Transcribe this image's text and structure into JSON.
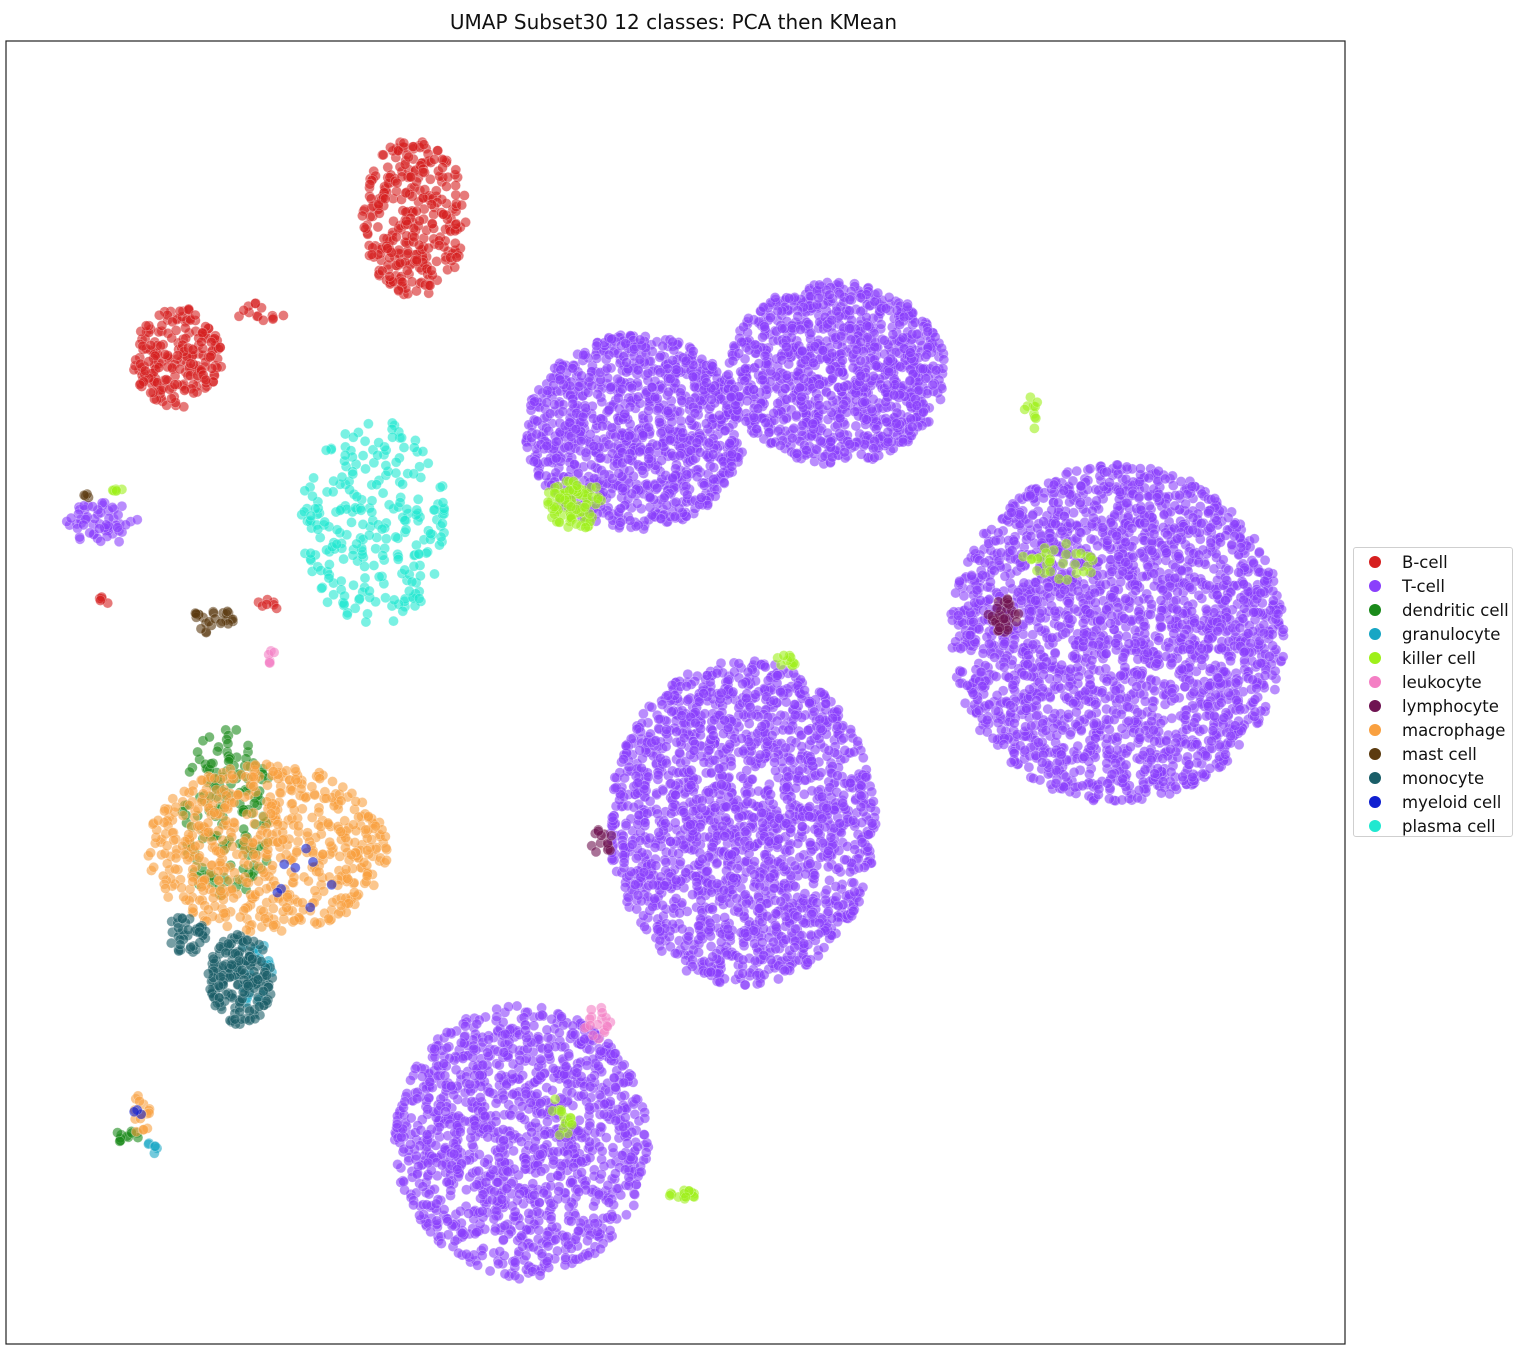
{
  "chart_data": {
    "type": "scatter",
    "title": "UMAP Subset30 12 classes: PCA then KMean",
    "xlabel": "",
    "ylabel": "",
    "xlim": [
      0,
      100
    ],
    "ylim": [
      0,
      100
    ],
    "grid": false,
    "ticks": false,
    "legend_position": "right",
    "series": [
      {
        "name": "B-cell",
        "color": "#d62020",
        "clusters": [
          {
            "x": 30.5,
            "y": 86.5,
            "rx": 3.9,
            "ry": 6.1,
            "n": 320
          },
          {
            "x": 12.8,
            "y": 75.7,
            "rx": 3.4,
            "ry": 3.9,
            "n": 210
          },
          {
            "x": 19.0,
            "y": 79.1,
            "rx": 1.8,
            "ry": 0.9,
            "n": 14
          },
          {
            "x": 19.8,
            "y": 56.8,
            "rx": 1.2,
            "ry": 0.4,
            "n": 7
          },
          {
            "x": 7.3,
            "y": 57.0,
            "rx": 0.4,
            "ry": 0.8,
            "n": 5
          }
        ]
      },
      {
        "name": "T-cell",
        "color": "#8a3ffc",
        "clusters": [
          {
            "x": 47.0,
            "y": 70.0,
            "rx": 8.2,
            "ry": 7.5,
            "n": 1100
          },
          {
            "x": 62.0,
            "y": 74.5,
            "rx": 8.2,
            "ry": 7.0,
            "n": 1100
          },
          {
            "x": 83.0,
            "y": 54.5,
            "rx": 12.5,
            "ry": 13.0,
            "n": 2400
          },
          {
            "x": 55.0,
            "y": 40.0,
            "rx": 10.0,
            "ry": 12.5,
            "n": 1900
          },
          {
            "x": 38.5,
            "y": 15.5,
            "rx": 9.5,
            "ry": 10.5,
            "n": 1300
          },
          {
            "x": 7.2,
            "y": 63.0,
            "rx": 2.8,
            "ry": 1.6,
            "n": 60
          }
        ]
      },
      {
        "name": "dendritic cell",
        "color": "#1a8a1a",
        "clusters": [
          {
            "x": 16.5,
            "y": 40.5,
            "rx": 3.5,
            "ry": 6.8,
            "n": 160
          },
          {
            "x": 9.0,
            "y": 16.0,
            "rx": 0.9,
            "ry": 0.6,
            "n": 12
          }
        ]
      },
      {
        "name": "granulocyte",
        "color": "#17a6c4",
        "clusters": [
          {
            "x": 18.5,
            "y": 28.5,
            "rx": 1.5,
            "ry": 2.5,
            "n": 30
          },
          {
            "x": 11.0,
            "y": 15.2,
            "rx": 0.5,
            "ry": 0.6,
            "n": 6
          }
        ]
      },
      {
        "name": "killer cell",
        "color": "#9ef01a",
        "clusters": [
          {
            "x": 42.5,
            "y": 64.5,
            "rx": 2.2,
            "ry": 2.0,
            "n": 90
          },
          {
            "x": 78.5,
            "y": 60.0,
            "rx": 3.0,
            "ry": 1.5,
            "n": 30
          },
          {
            "x": 50.5,
            "y": 11.5,
            "rx": 1.2,
            "ry": 0.4,
            "n": 15
          },
          {
            "x": 41.5,
            "y": 17.5,
            "rx": 1.0,
            "ry": 1.5,
            "n": 15
          },
          {
            "x": 58.5,
            "y": 52.5,
            "rx": 1.0,
            "ry": 0.6,
            "n": 10
          },
          {
            "x": 76.5,
            "y": 71.5,
            "rx": 0.6,
            "ry": 1.6,
            "n": 10
          },
          {
            "x": 8.5,
            "y": 65.5,
            "rx": 0.6,
            "ry": 0.3,
            "n": 6
          }
        ]
      },
      {
        "name": "leukocyte",
        "color": "#f47fc4",
        "clusters": [
          {
            "x": 44.0,
            "y": 24.5,
            "rx": 1.4,
            "ry": 1.4,
            "n": 18
          },
          {
            "x": 19.8,
            "y": 52.5,
            "rx": 0.4,
            "ry": 0.8,
            "n": 6
          }
        ]
      },
      {
        "name": "lymphocyte",
        "color": "#6f1452",
        "clusters": [
          {
            "x": 74.5,
            "y": 56.0,
            "rx": 1.2,
            "ry": 1.4,
            "n": 35
          },
          {
            "x": 44.5,
            "y": 38.5,
            "rx": 0.9,
            "ry": 1.0,
            "n": 14
          }
        ]
      },
      {
        "name": "macrophage",
        "color": "#f9a040",
        "clusters": [
          {
            "x": 19.5,
            "y": 38.0,
            "rx": 9.0,
            "ry": 6.5,
            "n": 600
          },
          {
            "x": 10.0,
            "y": 17.5,
            "rx": 0.8,
            "ry": 1.7,
            "n": 16
          }
        ]
      },
      {
        "name": "mast cell",
        "color": "#5c3b10",
        "clusters": [
          {
            "x": 15.5,
            "y": 55.5,
            "rx": 1.7,
            "ry": 1.0,
            "n": 28
          },
          {
            "x": 6.0,
            "y": 65.0,
            "rx": 0.3,
            "ry": 0.3,
            "n": 4
          }
        ]
      },
      {
        "name": "monocyte",
        "color": "#1a5e68",
        "clusters": [
          {
            "x": 17.5,
            "y": 28.0,
            "rx": 2.4,
            "ry": 3.5,
            "n": 180
          },
          {
            "x": 13.5,
            "y": 31.5,
            "rx": 1.5,
            "ry": 1.5,
            "n": 40
          }
        ]
      },
      {
        "name": "myeloid cell",
        "color": "#1020d0",
        "clusters": [
          {
            "x": 22.0,
            "y": 36.0,
            "rx": 3.0,
            "ry": 3.0,
            "n": 8
          },
          {
            "x": 9.8,
            "y": 17.8,
            "rx": 0.4,
            "ry": 0.4,
            "n": 3
          }
        ]
      },
      {
        "name": "plasma cell",
        "color": "#20e8d0",
        "clusters": [
          {
            "x": 27.5,
            "y": 63.0,
            "rx": 5.5,
            "ry": 8.0,
            "n": 260
          }
        ]
      }
    ]
  }
}
